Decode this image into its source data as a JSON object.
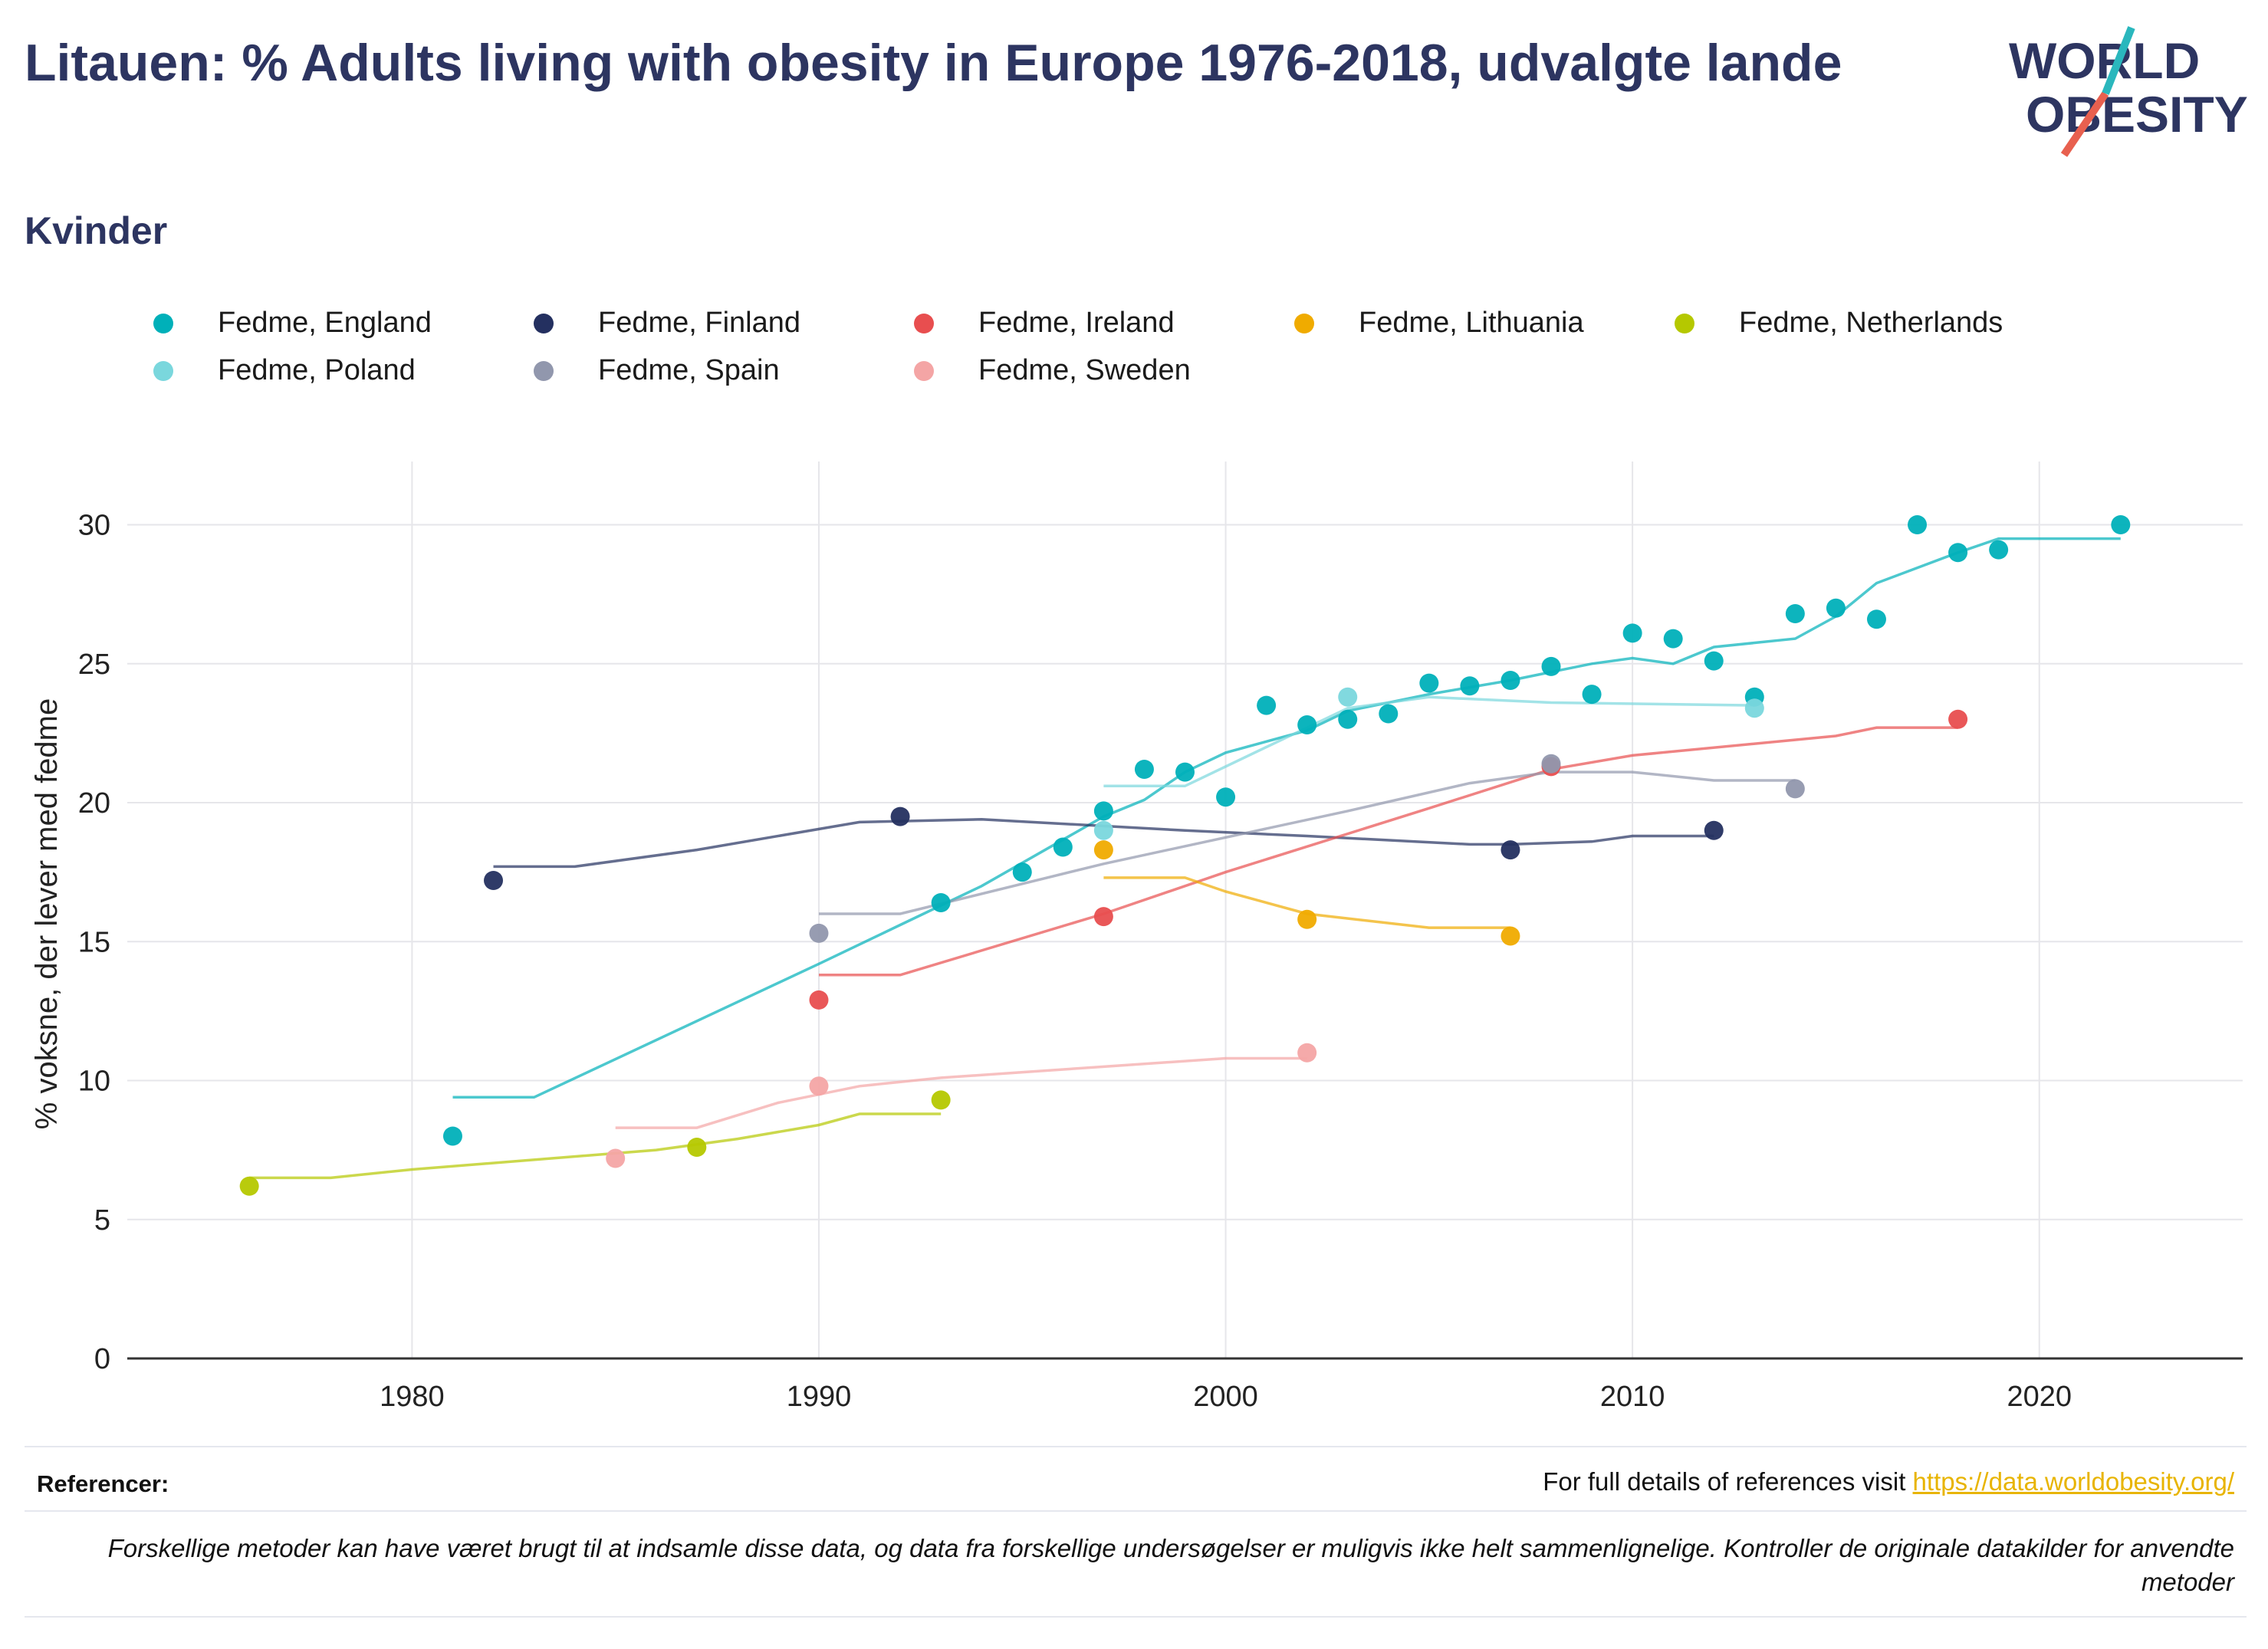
{
  "header": {
    "title": "Litauen: % Adults living with obesity in Europe 1976-2018, udvalgte lande",
    "subtitle": "Kvinder"
  },
  "logo": {
    "line1": "WORLD",
    "line2": "OBESITY"
  },
  "footer": {
    "references_label": "Referencer:",
    "references_text": "For full details of references visit ",
    "references_link": "https://data.worldobesity.org/",
    "disclaimer": "Forskellige metoder kan have været brugt til at indsamle disse data, og data fra forskellige undersøgelser er muligvis ikke helt sammenlignelige. Kontroller de originale datakilder for anvendte metoder"
  },
  "chart_data": {
    "type": "scatter",
    "ylabel": "% voksne, der lever med fedme",
    "xlabel": "",
    "xlim": [
      1973,
      2025
    ],
    "ylim": [
      0,
      32
    ],
    "x_ticks": [
      1980,
      1990,
      2000,
      2010,
      2020
    ],
    "y_ticks": [
      0,
      5,
      10,
      15,
      20,
      25,
      30
    ],
    "grid": true,
    "legend_position": "top",
    "series": [
      {
        "name": "Fedme, England",
        "color": "#00b0b9",
        "points": [
          [
            1981,
            8.0
          ],
          [
            1993,
            16.4
          ],
          [
            1995,
            17.5
          ],
          [
            1996,
            18.4
          ],
          [
            1997,
            19.7
          ],
          [
            1998,
            21.2
          ],
          [
            1999,
            21.1
          ],
          [
            2000,
            20.2
          ],
          [
            2001,
            23.5
          ],
          [
            2002,
            22.8
          ],
          [
            2003,
            23.0
          ],
          [
            2004,
            23.2
          ],
          [
            2005,
            24.3
          ],
          [
            2006,
            24.2
          ],
          [
            2007,
            24.4
          ],
          [
            2008,
            24.9
          ],
          [
            2009,
            23.9
          ],
          [
            2010,
            26.1
          ],
          [
            2011,
            25.9
          ],
          [
            2012,
            25.1
          ],
          [
            2013,
            23.8
          ],
          [
            2014,
            26.8
          ],
          [
            2015,
            27.0
          ],
          [
            2016,
            26.6
          ],
          [
            2017,
            30.0
          ],
          [
            2018,
            29.0
          ],
          [
            2019,
            29.1
          ],
          [
            2022,
            30.0
          ]
        ],
        "trend": [
          [
            1981,
            9.4
          ],
          [
            1983,
            9.4
          ],
          [
            1990,
            14.2
          ],
          [
            1992,
            15.6
          ],
          [
            1994,
            17.0
          ],
          [
            1997,
            19.5
          ],
          [
            1998,
            20.1
          ],
          [
            1999,
            21.1
          ],
          [
            2000,
            21.8
          ],
          [
            2002,
            22.6
          ],
          [
            2003,
            23.3
          ],
          [
            2005,
            23.9
          ],
          [
            2007,
            24.4
          ],
          [
            2008,
            24.7
          ],
          [
            2009,
            25.0
          ],
          [
            2010,
            25.2
          ],
          [
            2011,
            25.0
          ],
          [
            2012,
            25.6
          ],
          [
            2014,
            25.9
          ],
          [
            2015,
            26.7
          ],
          [
            2016,
            27.9
          ],
          [
            2018,
            29.0
          ],
          [
            2019,
            29.5
          ],
          [
            2022,
            29.5
          ]
        ]
      },
      {
        "name": "Fedme, Finland",
        "color": "#243060",
        "points": [
          [
            1982,
            17.2
          ],
          [
            1992,
            19.5
          ],
          [
            2007,
            18.3
          ],
          [
            2012,
            19.0
          ]
        ],
        "trend": [
          [
            1982,
            17.7
          ],
          [
            1984,
            17.7
          ],
          [
            1987,
            18.3
          ],
          [
            1991,
            19.3
          ],
          [
            1994,
            19.4
          ],
          [
            1999,
            19.0
          ],
          [
            2002,
            18.8
          ],
          [
            2006,
            18.5
          ],
          [
            2007,
            18.5
          ],
          [
            2009,
            18.6
          ],
          [
            2010,
            18.8
          ],
          [
            2012,
            18.8
          ]
        ]
      },
      {
        "name": "Fedme, Ireland",
        "color": "#e84e4f",
        "points": [
          [
            1990,
            12.9
          ],
          [
            1997,
            15.9
          ],
          [
            2008,
            21.3
          ],
          [
            2018,
            23.0
          ]
        ],
        "trend": [
          [
            1990,
            13.8
          ],
          [
            1992,
            13.8
          ],
          [
            1997,
            16.0
          ],
          [
            2000,
            17.5
          ],
          [
            2005,
            19.8
          ],
          [
            2008,
            21.2
          ],
          [
            2010,
            21.7
          ],
          [
            2015,
            22.4
          ],
          [
            2016,
            22.7
          ],
          [
            2018,
            22.7
          ]
        ]
      },
      {
        "name": "Fedme, Lithuania",
        "color": "#f0ab00",
        "points": [
          [
            1997,
            18.3
          ],
          [
            2002,
            15.8
          ],
          [
            2007,
            15.2
          ]
        ],
        "trend": [
          [
            1997,
            17.3
          ],
          [
            1999,
            17.3
          ],
          [
            2000,
            16.8
          ],
          [
            2002,
            16.0
          ],
          [
            2005,
            15.5
          ],
          [
            2007,
            15.5
          ]
        ]
      },
      {
        "name": "Fedme, Netherlands",
        "color": "#b5c800",
        "points": [
          [
            1976,
            6.2
          ],
          [
            1987,
            7.6
          ],
          [
            1993,
            9.3
          ]
        ],
        "trend": [
          [
            1976,
            6.5
          ],
          [
            1978,
            6.5
          ],
          [
            1980,
            6.8
          ],
          [
            1986,
            7.5
          ],
          [
            1988,
            7.9
          ],
          [
            1990,
            8.4
          ],
          [
            1991,
            8.8
          ],
          [
            1993,
            8.8
          ]
        ]
      },
      {
        "name": "Fedme, Poland",
        "color": "#7ad7dd",
        "points": [
          [
            1997,
            19.0
          ],
          [
            2003,
            23.8
          ],
          [
            2013,
            23.4
          ]
        ],
        "trend": [
          [
            1997,
            20.6
          ],
          [
            1999,
            20.6
          ],
          [
            2001,
            22.0
          ],
          [
            2003,
            23.4
          ],
          [
            2005,
            23.8
          ],
          [
            2008,
            23.6
          ],
          [
            2013,
            23.5
          ]
        ]
      },
      {
        "name": "Fedme, Spain",
        "color": "#9197ad",
        "points": [
          [
            1990,
            15.3
          ],
          [
            2008,
            21.4
          ],
          [
            2014,
            20.5
          ]
        ],
        "trend": [
          [
            1990,
            16.0
          ],
          [
            1992,
            16.0
          ],
          [
            1997,
            17.8
          ],
          [
            2003,
            19.7
          ],
          [
            2006,
            20.7
          ],
          [
            2008,
            21.1
          ],
          [
            2010,
            21.1
          ],
          [
            2012,
            20.8
          ],
          [
            2014,
            20.8
          ]
        ]
      },
      {
        "name": "Fedme, Sweden",
        "color": "#f4a5a5",
        "points": [
          [
            1985,
            7.2
          ],
          [
            1990,
            9.8
          ],
          [
            2002,
            11.0
          ]
        ],
        "trend": [
          [
            1985,
            8.3
          ],
          [
            1987,
            8.3
          ],
          [
            1989,
            9.2
          ],
          [
            1991,
            9.8
          ],
          [
            1993,
            10.1
          ],
          [
            1997,
            10.5
          ],
          [
            2000,
            10.8
          ],
          [
            2002,
            10.8
          ]
        ]
      }
    ]
  }
}
